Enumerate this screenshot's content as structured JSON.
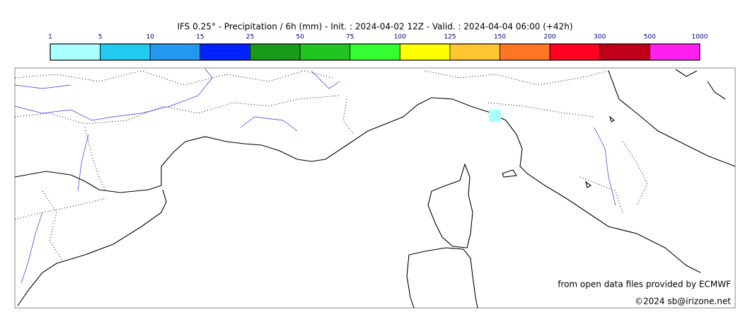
{
  "title": "IFS 0.25° - Precipitation / 6h (mm) - Init. : 2024-04-02 12Z - Valid. : 2024-04-04 06:00 (+42h)",
  "colorbar": {
    "ticks": [
      1,
      5,
      10,
      15,
      25,
      50,
      75,
      100,
      125,
      150,
      200,
      300,
      500,
      1000
    ],
    "colors": [
      "#aaffff",
      "#22ccee",
      "#2299ee",
      "#0022ff",
      "#1a9a1a",
      "#22c422",
      "#33ff33",
      "#ffff00",
      "#ffc530",
      "#ff7722",
      "#ff0022",
      "#c00018",
      "#ff22ee"
    ]
  },
  "credits": {
    "source": "from open data files provided by ECMWF",
    "copyright": "©2024 sb@irizone.net"
  }
}
